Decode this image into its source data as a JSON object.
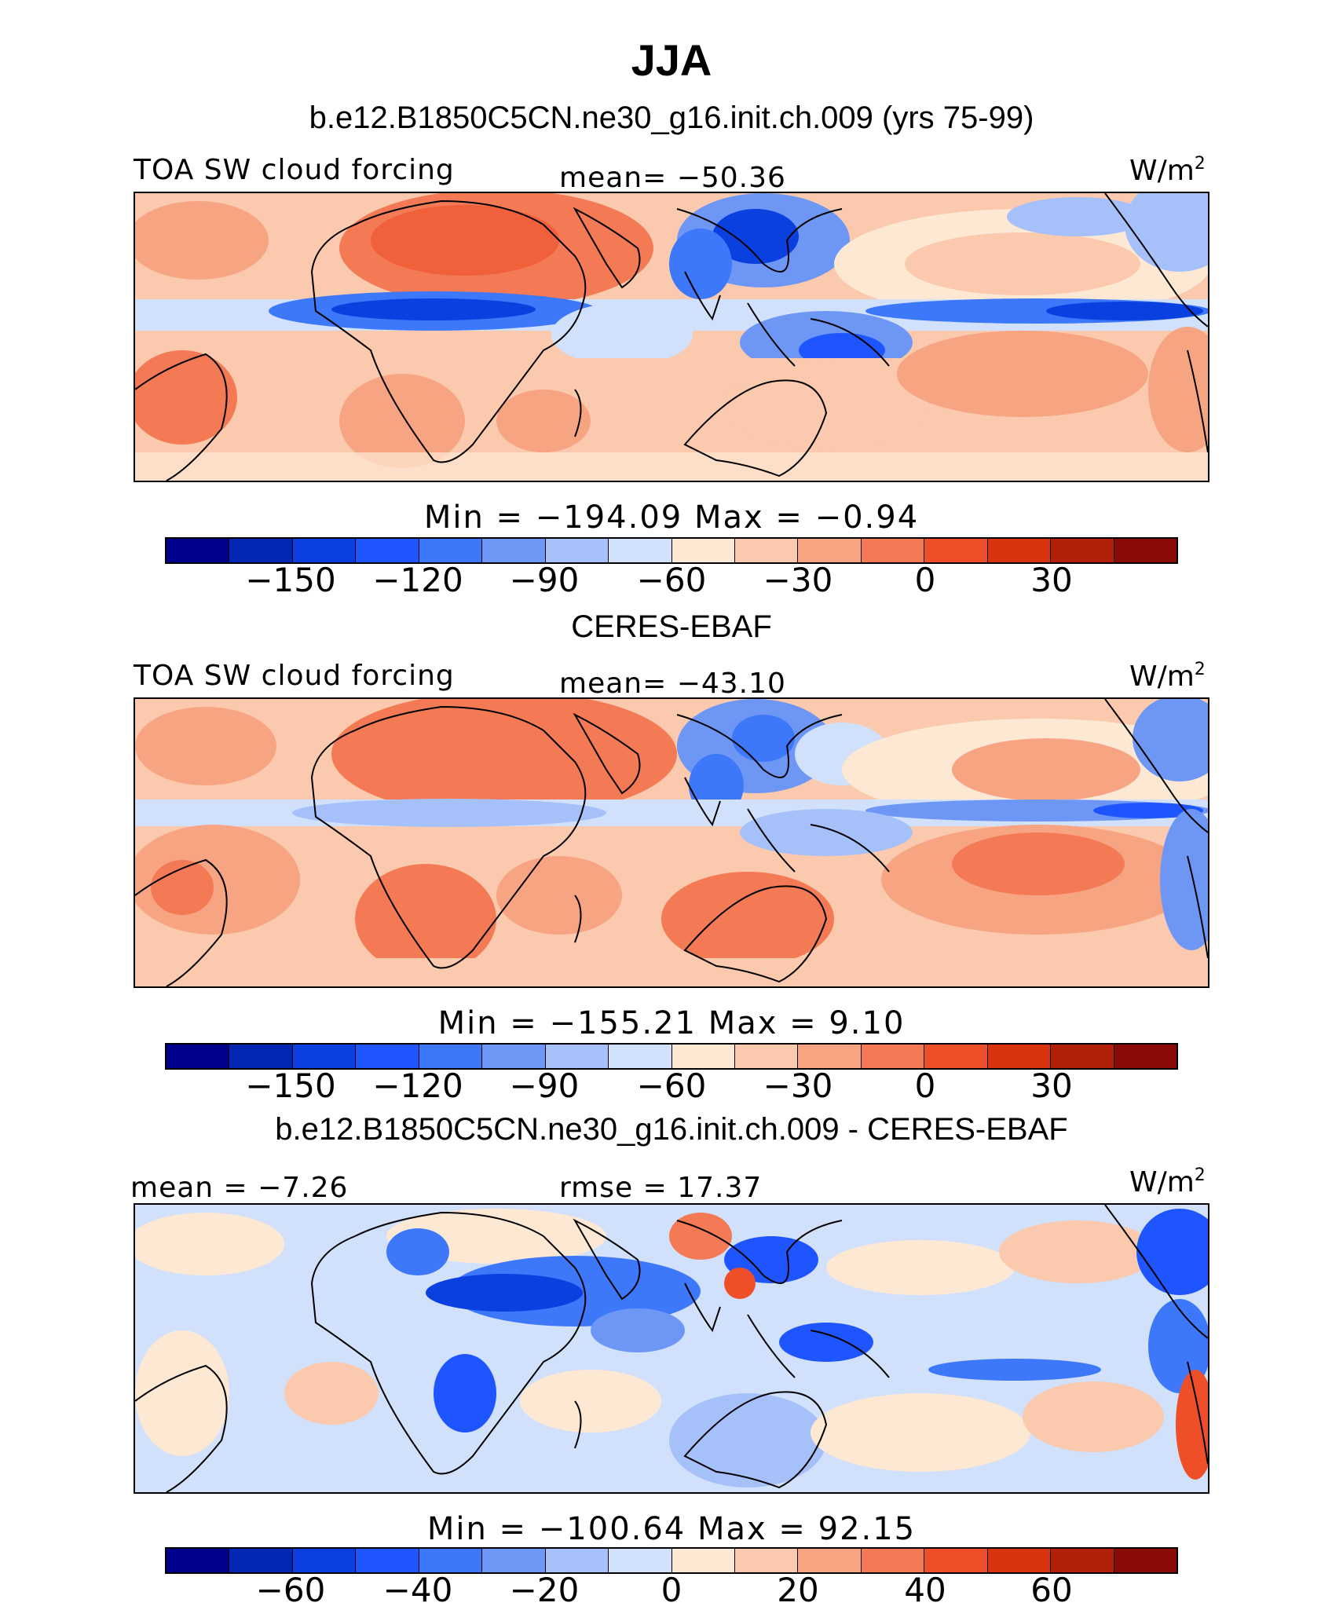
{
  "figure": {
    "title": "JJA",
    "units_base": "W/m",
    "units_exp": "2"
  },
  "panels": [
    {
      "id": "model",
      "subtitle": "b.e12.B1850C5CN.ne30_g16.init.ch.009 (yrs 75-99)",
      "left_label": "TOA SW cloud forcing",
      "center_label": "mean=  −50.36",
      "min_max": "Min  =  −194.09  Max  =   −0.94",
      "colorbar_ticks": [
        "−150",
        "−120",
        "−90",
        "−60",
        "−30",
        "0",
        "30"
      ]
    },
    {
      "id": "obs",
      "subtitle": "CERES-EBAF",
      "left_label": "TOA SW cloud forcing",
      "center_label": "mean=  −43.10",
      "min_max": "Min  =  −155.21  Max  =     9.10",
      "colorbar_ticks": [
        "−150",
        "−120",
        "−90",
        "−60",
        "−30",
        "0",
        "30"
      ]
    },
    {
      "id": "diff",
      "subtitle": "b.e12.B1850C5CN.ne30_g16.init.ch.009 - CERES-EBAF",
      "left_label": "mean  =   −7.26",
      "center_label": "rmse  =   17.37",
      "min_max": "Min  =  −100.64  Max  =   92.15",
      "colorbar_ticks": [
        "−60",
        "−40",
        "−20",
        "0",
        "20",
        "40",
        "60"
      ]
    }
  ],
  "colorbar_colors": [
    "#00008c",
    "#0326b3",
    "#0a3fe0",
    "#1f55ff",
    "#3d78fa",
    "#6e97f5",
    "#a6c0fa",
    "#d2e1fb",
    "#fde8d4",
    "#fbc9ad",
    "#f7a483",
    "#f37a55",
    "#ee4f28",
    "#d8340f",
    "#b32009",
    "#8a0a05"
  ]
}
